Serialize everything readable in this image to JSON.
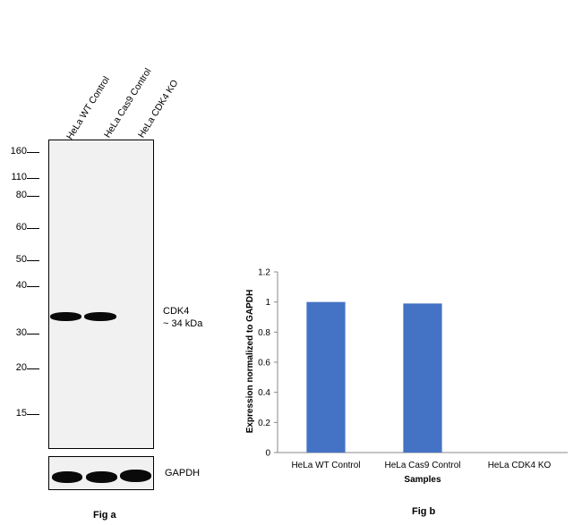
{
  "figure_a": {
    "lanes": [
      "HeLa WT Control",
      "HeLa Cas9 Control",
      "HeLa CDK4 KO"
    ],
    "mw_markers": [
      "160",
      "110",
      "80",
      "60",
      "50",
      "40",
      "30",
      "20",
      "15"
    ],
    "target_label_line1": "CDK4",
    "target_label_line2": "~ 34 kDa",
    "loading_control": "GAPDH",
    "caption": "Fig a"
  },
  "figure_b": {
    "caption": "Fig b"
  },
  "chart_data": {
    "type": "bar",
    "categories": [
      "HeLa WT Control",
      "HeLa Cas9 Control",
      "HeLa CDK4 KO"
    ],
    "values": [
      1.0,
      0.99,
      0.0
    ],
    "xlabel": "Samples",
    "ylabel": "Expression normalized to GAPDH",
    "ylim": [
      0,
      1.2
    ],
    "yticks": [
      "0",
      "0.2",
      "0.4",
      "0.6",
      "0.8",
      "1",
      "1.2"
    ],
    "bar_color": "#4472C4",
    "grid": false
  }
}
